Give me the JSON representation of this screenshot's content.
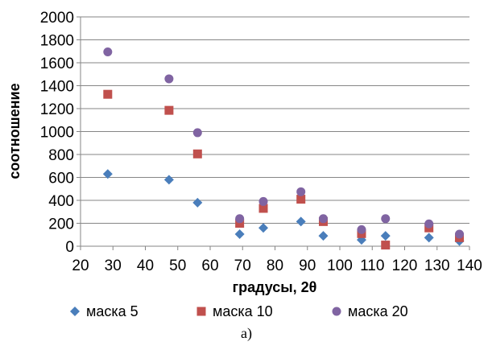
{
  "chart_data": {
    "type": "scatter",
    "xlabel": "градусы, 2θ",
    "ylabel": "соотношение",
    "xlim": [
      20,
      140
    ],
    "ylim": [
      0,
      2000
    ],
    "x_ticks": [
      "20",
      "30",
      "40",
      "50",
      "60",
      "70",
      "80",
      "90",
      "100",
      "110",
      "120",
      "130",
      "140"
    ],
    "y_ticks": [
      "0",
      "200",
      "400",
      "600",
      "800",
      "1000",
      "1200",
      "1400",
      "1600",
      "1800",
      "2000"
    ],
    "grid": "horizontal",
    "legend_position": "bottom",
    "series": [
      {
        "name": "маска 5",
        "marker": "diamond",
        "color": "#4a7ebb",
        "points": [
          [
            28.4,
            630
          ],
          [
            47.3,
            580
          ],
          [
            56.1,
            380
          ],
          [
            69.1,
            105
          ],
          [
            76.4,
            160
          ],
          [
            88.0,
            215
          ],
          [
            94.9,
            90
          ],
          [
            106.7,
            55
          ],
          [
            114.1,
            90
          ],
          [
            127.5,
            75
          ],
          [
            136.9,
            45
          ]
        ]
      },
      {
        "name": "маска 10",
        "marker": "square",
        "color": "#c0504d",
        "points": [
          [
            28.4,
            1325
          ],
          [
            47.3,
            1185
          ],
          [
            56.1,
            805
          ],
          [
            69.1,
            200
          ],
          [
            76.4,
            330
          ],
          [
            88.0,
            410
          ],
          [
            94.9,
            215
          ],
          [
            106.7,
            110
          ],
          [
            114.1,
            10
          ],
          [
            127.5,
            160
          ],
          [
            136.9,
            75
          ]
        ]
      },
      {
        "name": "маска 20",
        "marker": "circle",
        "color": "#8064a2",
        "points": [
          [
            28.4,
            1695
          ],
          [
            47.3,
            1460
          ],
          [
            56.1,
            990
          ],
          [
            69.1,
            240
          ],
          [
            76.4,
            390
          ],
          [
            88.0,
            475
          ],
          [
            94.9,
            240
          ],
          [
            106.7,
            145
          ],
          [
            114.1,
            240
          ],
          [
            127.5,
            195
          ],
          [
            136.9,
            105
          ]
        ]
      }
    ]
  },
  "caption": "а)"
}
